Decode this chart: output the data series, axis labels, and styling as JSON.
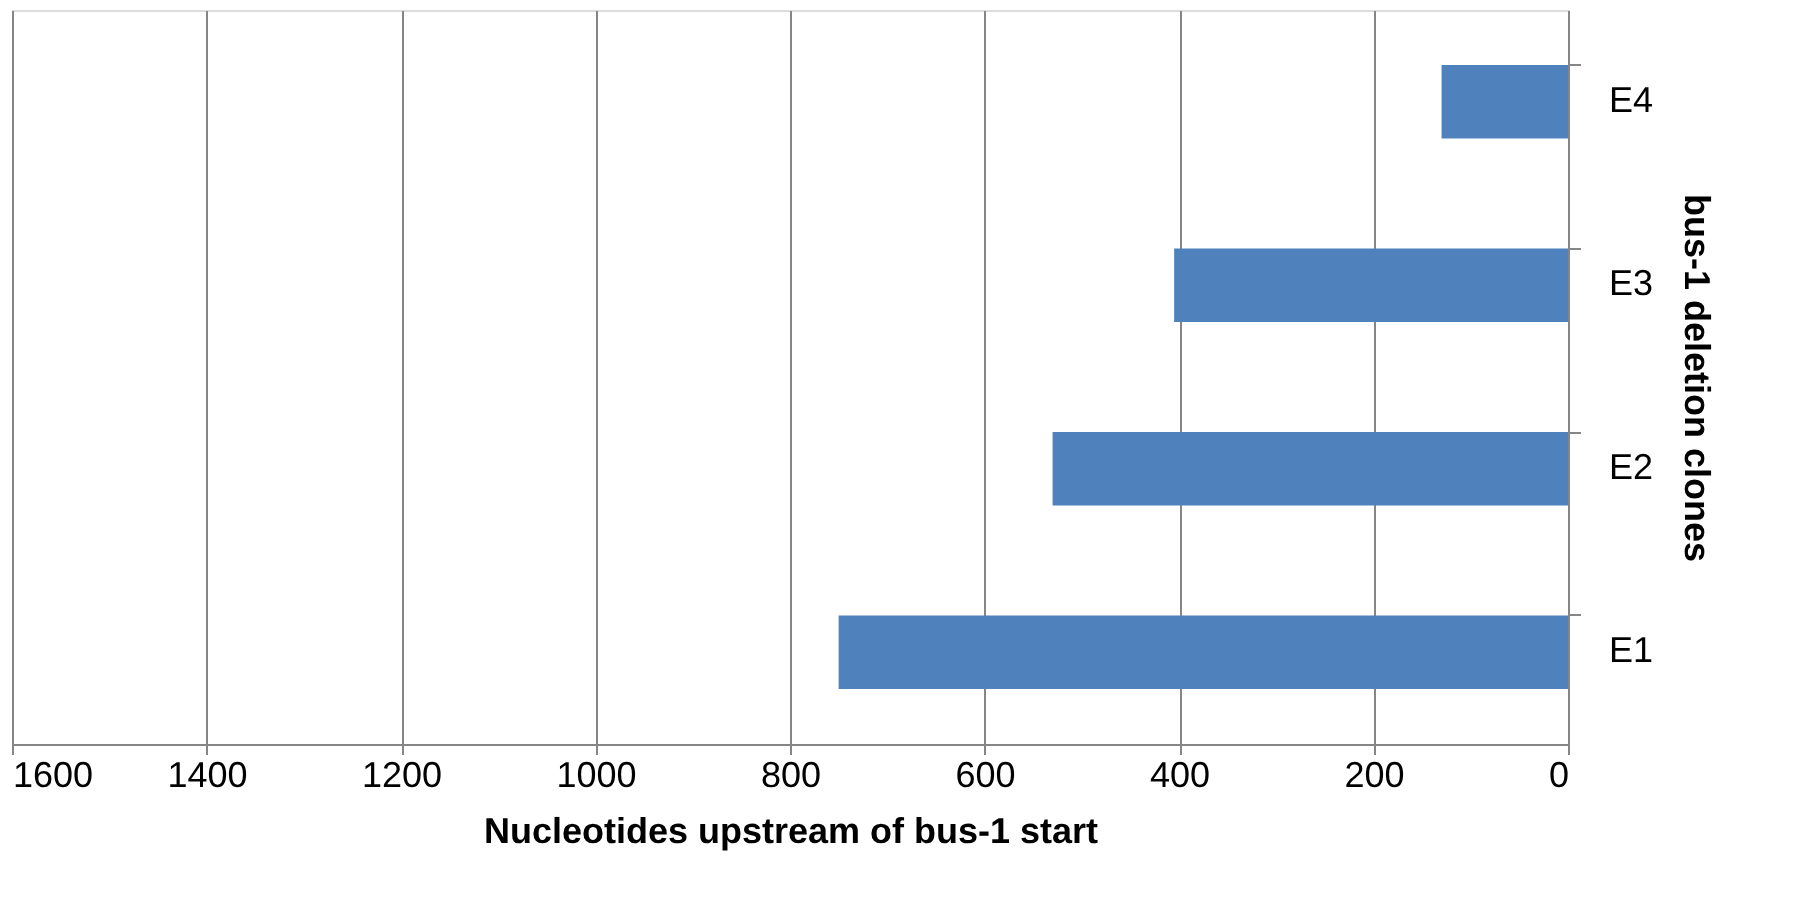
{
  "chart_data": {
    "type": "bar",
    "orientation": "horizontal",
    "xlabel": "Nucleotides upstream of bus-1 start",
    "ylabel": "bus-1 deletion clones",
    "categories": [
      "E4",
      "E3",
      "E2",
      "E1"
    ],
    "values": [
      130,
      405,
      530,
      750
    ],
    "color": "#4f81bd",
    "xlim": [
      1600,
      0
    ],
    "xticks": [
      1600,
      1400,
      1200,
      1000,
      800,
      600,
      400,
      200,
      0
    ],
    "grid": "x"
  }
}
